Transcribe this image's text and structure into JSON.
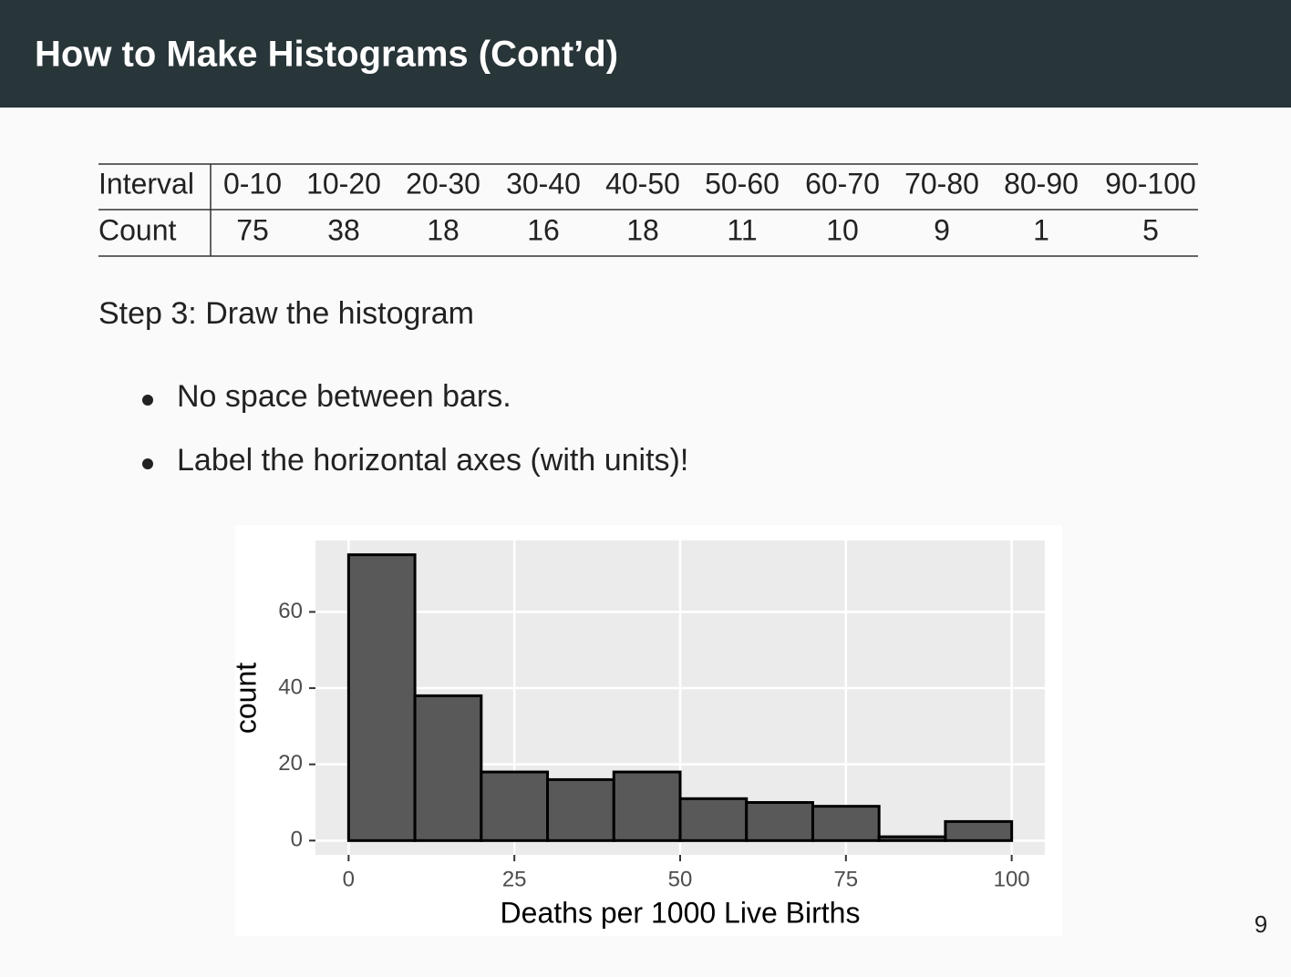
{
  "header": {
    "title": "How to Make Histograms (Cont’d)"
  },
  "table": {
    "rows": [
      [
        "Interval",
        "0-10",
        "10-20",
        "20-30",
        "30-40",
        "40-50",
        "50-60",
        "60-70",
        "70-80",
        "80-90",
        "90-100"
      ],
      [
        "Count",
        75,
        38,
        18,
        16,
        18,
        11,
        10,
        9,
        1,
        5
      ]
    ]
  },
  "step": "Step 3: Draw the histogram",
  "bullets": [
    "No space between bars.",
    "Label the horizontal axes (with units)!"
  ],
  "chart_data": {
    "type": "histogram",
    "bins": [
      0,
      10,
      20,
      30,
      40,
      50,
      60,
      70,
      80,
      90,
      100
    ],
    "values": [
      75,
      38,
      18,
      16,
      18,
      11,
      10,
      9,
      1,
      5
    ],
    "color": "#595959",
    "x_label": "Deaths per 1000 Live Births",
    "y_label": "count",
    "xlim": [
      -5,
      105
    ],
    "ylim": [
      -3.75,
      78.75
    ],
    "xticks": [
      0,
      25,
      50,
      75,
      100
    ],
    "yticks": [
      0,
      20,
      40,
      60
    ],
    "grid": true
  },
  "page_number": "9"
}
